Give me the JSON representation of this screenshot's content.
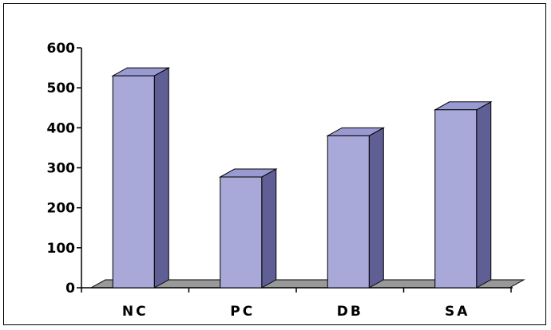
{
  "chart_data": {
    "type": "bar",
    "style": "3d-column",
    "categories": [
      "NC",
      "PC",
      "DB",
      "SA"
    ],
    "values": [
      530,
      277,
      380,
      445
    ],
    "title": "",
    "xlabel": "",
    "ylabel": "",
    "ylim": [
      0,
      600
    ],
    "yticks": [
      0,
      100,
      200,
      300,
      400,
      500,
      600
    ],
    "grid": false,
    "legend": "none",
    "colors": {
      "bar_front": "#a9a9d9",
      "bar_side": "#5f5f96",
      "bar_top": "#9a9ad2",
      "floor": "#999999",
      "outline": "#000000"
    }
  }
}
